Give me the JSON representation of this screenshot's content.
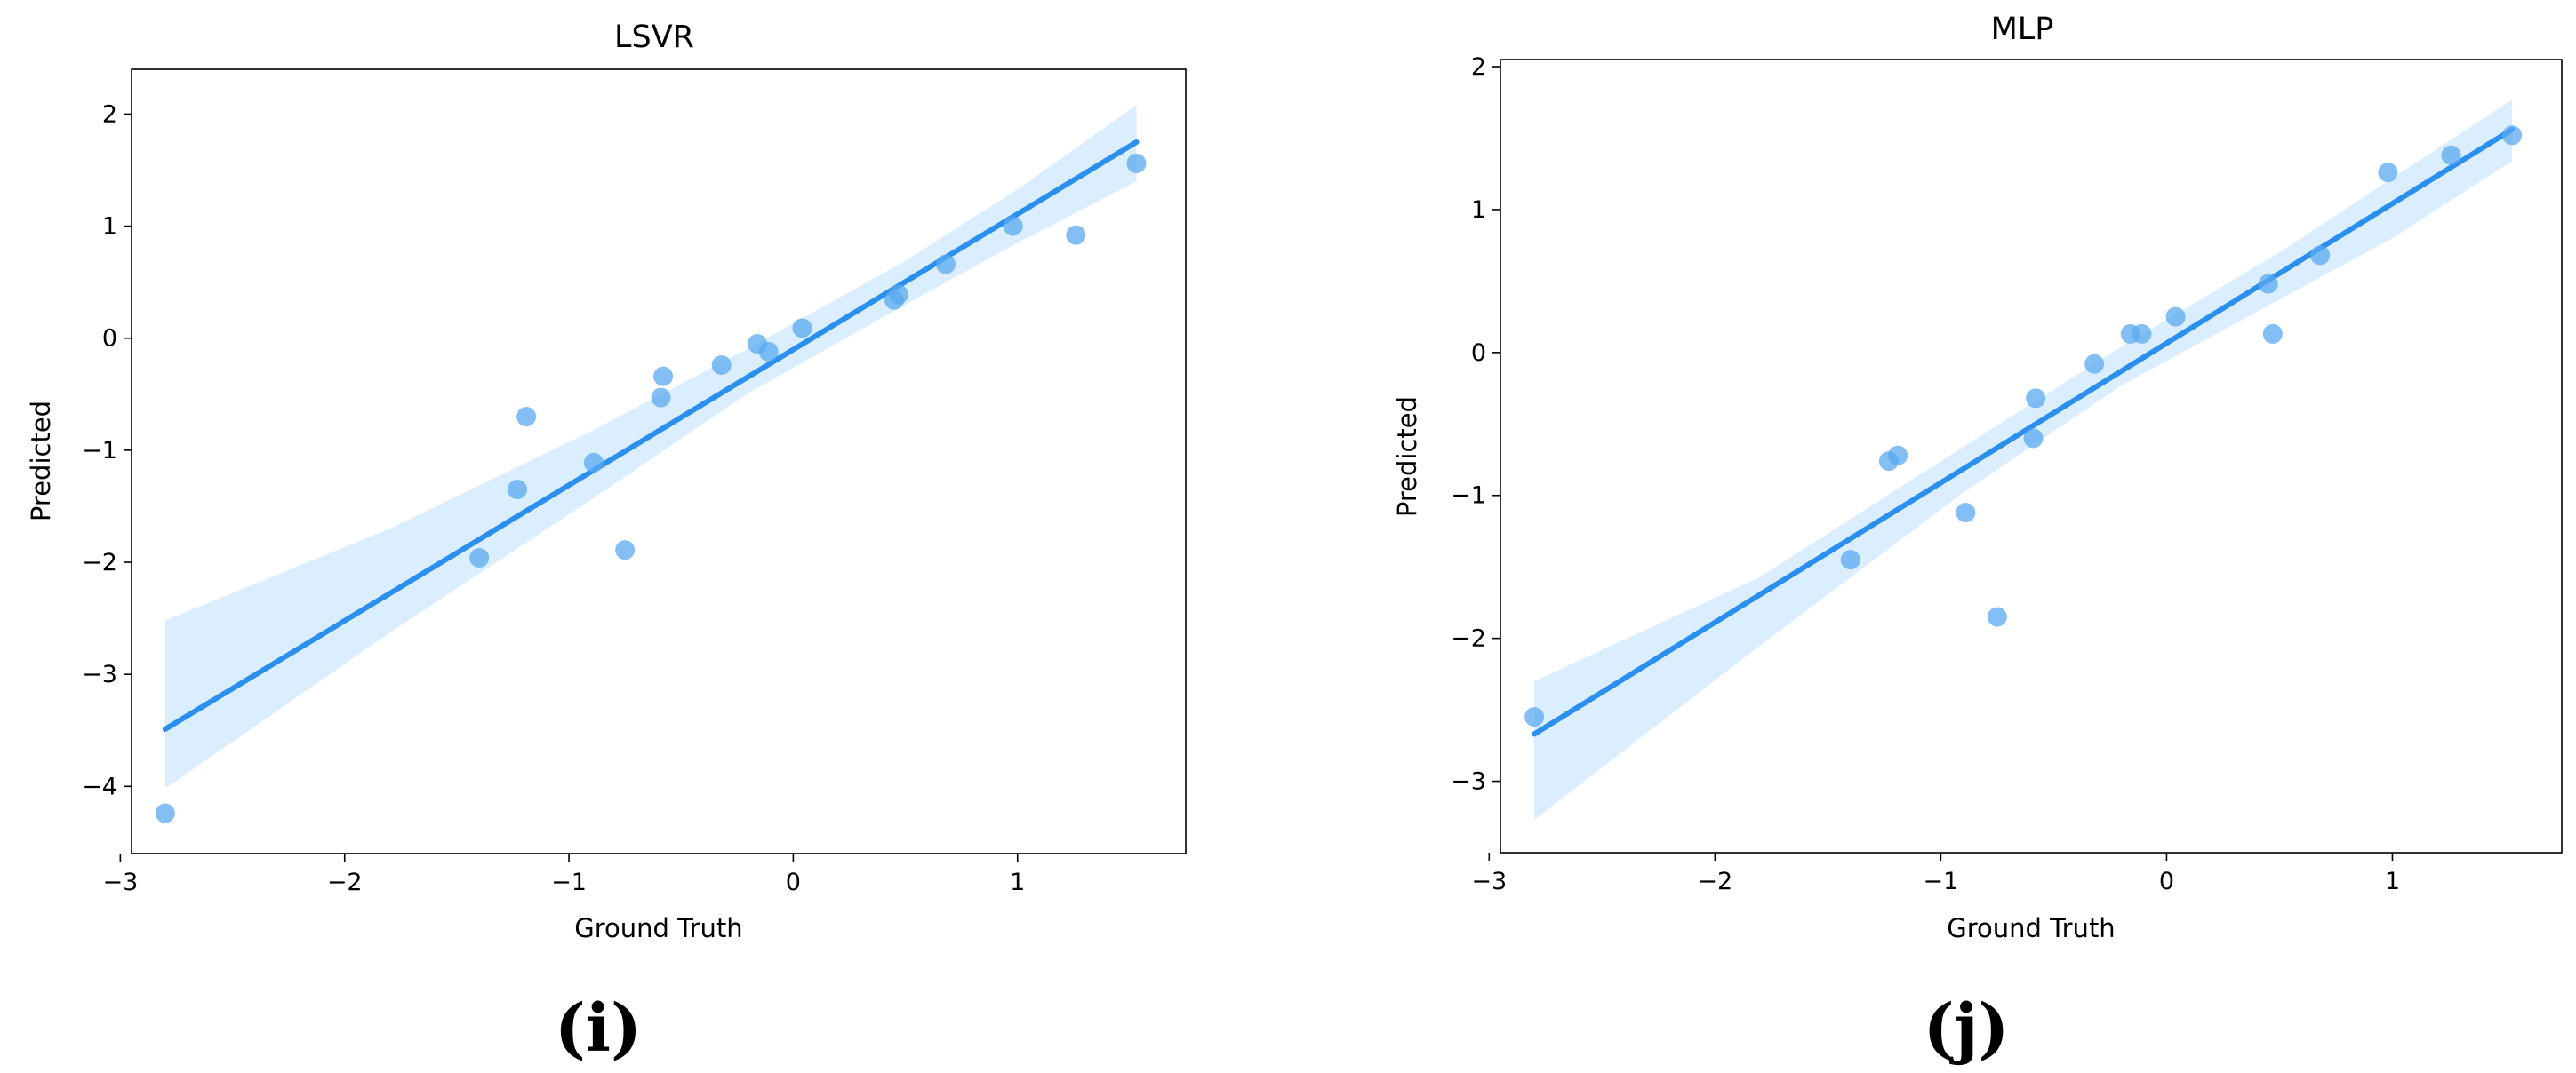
{
  "chart_data": [
    {
      "type": "scatter",
      "title": "LSVR",
      "xlabel": "Ground Truth",
      "ylabel": "Predicted",
      "panel_label": "(i)",
      "xlim": [
        -2.95,
        1.75
      ],
      "ylim": [
        -4.6,
        2.4
      ],
      "xticks": [
        -3,
        -2,
        -1,
        0,
        1
      ],
      "xtick_labels": [
        "−3",
        "−2",
        "−1",
        "0",
        "1"
      ],
      "yticks": [
        -4,
        -3,
        -2,
        -1,
        0,
        1,
        2
      ],
      "ytick_labels": [
        "−4",
        "−3",
        "−2",
        "−1",
        "0",
        "1",
        "2"
      ],
      "grid": false,
      "point_color": "#5aaaf0",
      "line_color": "#2b8ff0",
      "band_color": "#dbeeff",
      "points": [
        {
          "x": -2.8,
          "y": -4.24
        },
        {
          "x": -1.4,
          "y": -1.96
        },
        {
          "x": -1.23,
          "y": -1.35
        },
        {
          "x": -1.19,
          "y": -0.7
        },
        {
          "x": -0.89,
          "y": -1.11
        },
        {
          "x": -0.75,
          "y": -1.89
        },
        {
          "x": -0.59,
          "y": -0.53
        },
        {
          "x": -0.58,
          "y": -0.34
        },
        {
          "x": -0.32,
          "y": -0.24
        },
        {
          "x": -0.16,
          "y": -0.05
        },
        {
          "x": -0.11,
          "y": -0.12
        },
        {
          "x": 0.04,
          "y": 0.09
        },
        {
          "x": 0.45,
          "y": 0.34
        },
        {
          "x": 0.47,
          "y": 0.39
        },
        {
          "x": 0.68,
          "y": 0.66
        },
        {
          "x": 0.98,
          "y": 1.0
        },
        {
          "x": 1.26,
          "y": 0.92
        },
        {
          "x": 1.53,
          "y": 1.56
        }
      ],
      "regression_line": {
        "x": [
          -2.8,
          1.53
        ],
        "y": [
          -3.49,
          1.75
        ]
      },
      "confidence_band": {
        "x": [
          -2.8,
          -1.8,
          -0.9,
          -0.2,
          0.5,
          1.0,
          1.53
        ],
        "lower": [
          -4.02,
          -2.63,
          -1.44,
          -0.49,
          0.3,
          0.85,
          1.4
        ],
        "upper": [
          -2.52,
          -1.7,
          -0.83,
          -0.09,
          0.69,
          1.33,
          2.08
        ]
      }
    },
    {
      "type": "scatter",
      "title": "MLP",
      "xlabel": "Ground Truth",
      "ylabel": "Predicted",
      "panel_label": "(j)",
      "xlim": [
        -2.95,
        1.75
      ],
      "ylim": [
        -3.5,
        2.05
      ],
      "xticks": [
        -3,
        -2,
        -1,
        0,
        1
      ],
      "xtick_labels": [
        "−3",
        "−2",
        "−1",
        "0",
        "1"
      ],
      "yticks": [
        -3,
        -2,
        -1,
        0,
        1,
        2
      ],
      "ytick_labels": [
        "−3",
        "−2",
        "−1",
        "0",
        "1",
        "2"
      ],
      "grid": false,
      "point_color": "#5aaaf0",
      "line_color": "#2b8ff0",
      "band_color": "#dbeeff",
      "points": [
        {
          "x": -2.8,
          "y": -2.55
        },
        {
          "x": -1.4,
          "y": -1.45
        },
        {
          "x": -1.23,
          "y": -0.76
        },
        {
          "x": -1.19,
          "y": -0.72
        },
        {
          "x": -0.89,
          "y": -1.12
        },
        {
          "x": -0.75,
          "y": -1.85
        },
        {
          "x": -0.59,
          "y": -0.6
        },
        {
          "x": -0.58,
          "y": -0.32
        },
        {
          "x": -0.32,
          "y": -0.08
        },
        {
          "x": -0.16,
          "y": 0.13
        },
        {
          "x": -0.11,
          "y": 0.13
        },
        {
          "x": 0.04,
          "y": 0.25
        },
        {
          "x": 0.45,
          "y": 0.48
        },
        {
          "x": 0.47,
          "y": 0.13
        },
        {
          "x": 0.68,
          "y": 0.68
        },
        {
          "x": 0.98,
          "y": 1.26
        },
        {
          "x": 1.26,
          "y": 1.38
        },
        {
          "x": 1.53,
          "y": 1.52
        }
      ],
      "regression_line": {
        "x": [
          -2.8,
          1.53
        ],
        "y": [
          -2.67,
          1.56
        ]
      },
      "confidence_band": {
        "x": [
          -2.8,
          -1.8,
          -0.9,
          -0.2,
          0.5,
          1.0,
          1.53
        ],
        "lower": [
          -3.27,
          -2.05,
          -0.98,
          -0.23,
          0.37,
          0.8,
          1.34
        ],
        "upper": [
          -2.3,
          -1.57,
          -0.66,
          0.04,
          0.7,
          1.22,
          1.77
        ]
      }
    }
  ]
}
